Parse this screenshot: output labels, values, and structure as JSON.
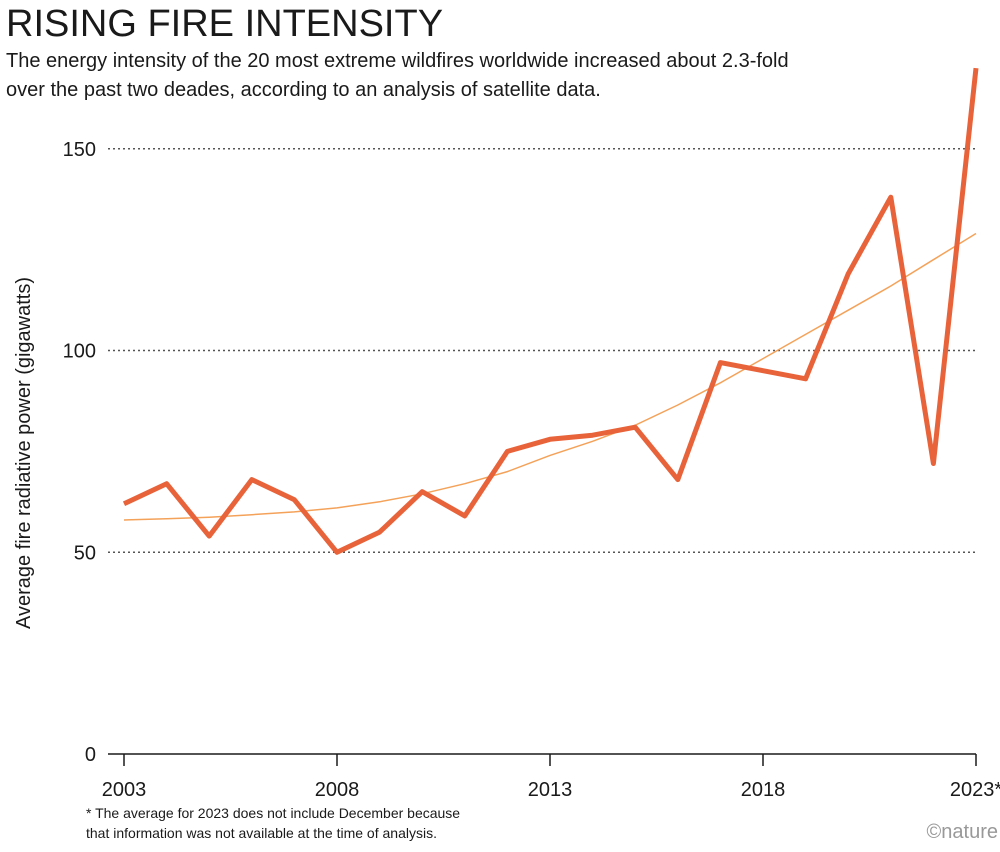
{
  "chart_data": {
    "type": "line",
    "title": "RISING FIRE INTENSITY",
    "subtitle": [
      "The energy intensity of the 20 most extreme wildfires worldwide increased about 2.3-fold",
      "over the past two deades, according to an analysis of satellite data."
    ],
    "y_label": "Average fire radiative power (gigawatts)",
    "footnote": [
      "* The average for 2023 does not include December because",
      "that information was not available at the time of analysis."
    ],
    "credit": "©nature",
    "x": [
      2003,
      2004,
      2005,
      2006,
      2007,
      2008,
      2009,
      2010,
      2011,
      2012,
      2013,
      2014,
      2015,
      2016,
      2017,
      2018,
      2019,
      2020,
      2021,
      2022,
      2023
    ],
    "series": [
      {
        "color": "#e8633a",
        "values": [
          62,
          67,
          54,
          68,
          63,
          50,
          55,
          65,
          59,
          75,
          78,
          79,
          81,
          68,
          97,
          95,
          93,
          119,
          138,
          72,
          170
        ]
      },
      {
        "color": "#f4a259",
        "values": [
          58,
          58.3,
          58.7,
          59.3,
          60,
          61,
          62.5,
          64.5,
          67,
          70,
          74,
          77.5,
          81.5,
          86.5,
          92,
          98,
          104,
          110,
          116,
          122.5,
          129
        ]
      }
    ],
    "xlim": [
      2003,
      2023
    ],
    "xticks": [
      2003,
      2008,
      2013,
      2018,
      {
        "value": 2023,
        "label": "2023*"
      }
    ],
    "ylim": [
      0,
      172
    ],
    "yticks": [
      0,
      50,
      100,
      150
    ],
    "grid": true
  }
}
